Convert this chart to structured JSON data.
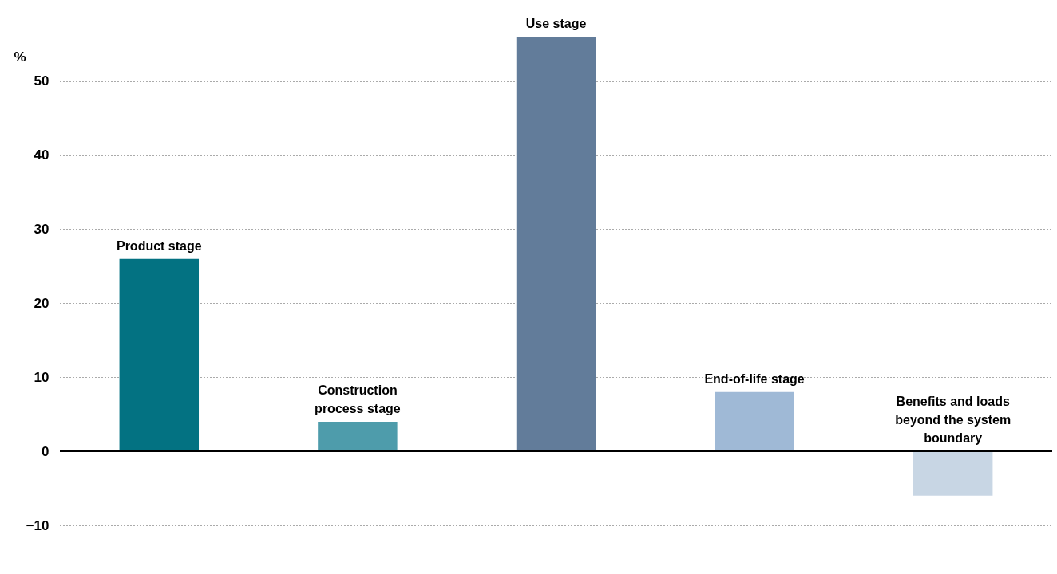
{
  "chart_data": {
    "type": "bar",
    "ylabel": "%",
    "categories": [
      "Product stage",
      "Construction process stage",
      "Use stage",
      "End-of-life stage",
      "Benefits and loads beyond the system boundary"
    ],
    "values": [
      26,
      4,
      56,
      8,
      -6
    ],
    "colors": [
      "#037282",
      "#4e9cab",
      "#627c9a",
      "#9fb9d6",
      "#c8d6e4"
    ],
    "ylim": [
      -10,
      56
    ],
    "yticks": [
      -10,
      0,
      10,
      20,
      30,
      40,
      50
    ],
    "grid": "y",
    "ref_lines": [
      {
        "axis": "y",
        "value": 0,
        "color": "#000000"
      }
    ]
  }
}
